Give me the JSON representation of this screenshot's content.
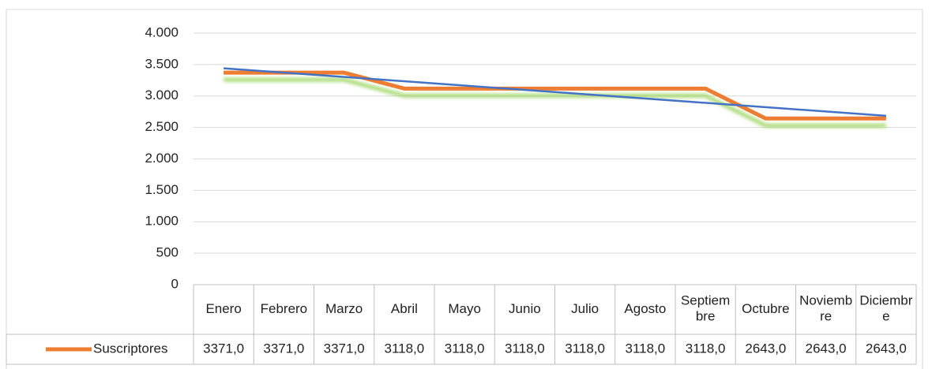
{
  "chart_data": {
    "type": "line",
    "categories": [
      "Enero",
      "Febrero",
      "Marzo",
      "Abril",
      "Mayo",
      "Junio",
      "Julio",
      "Agosto",
      "Septiembre",
      "Octubre",
      "Noviembre",
      "Diciembre"
    ],
    "series": [
      {
        "name": "Suscriptores",
        "color": "#ed7d31",
        "values": [
          3371,
          3371,
          3371,
          3118,
          3118,
          3118,
          3118,
          3118,
          3118,
          2643,
          2643,
          2643
        ],
        "value_labels": [
          "3371,0",
          "3371,0",
          "3371,0",
          "3118,0",
          "3118,0",
          "3118,0",
          "3118,0",
          "3118,0",
          "3118,0",
          "2643,0",
          "2643,0",
          "2643,0"
        ]
      }
    ],
    "trendline": true,
    "trendline_color": "#4472c4",
    "ylim": [
      0,
      4000
    ],
    "yticks": [
      0,
      500,
      {
        "value": 1000,
        "label": "1.000"
      },
      {
        "value": 1500,
        "label": "1.500"
      },
      {
        "value": 2000,
        "label": "2.000"
      },
      {
        "value": 2500,
        "label": "2.500"
      },
      {
        "value": 3000,
        "label": "3.000"
      },
      {
        "value": 3500,
        "label": "3.500"
      },
      {
        "value": 4000,
        "label": "4.000"
      }
    ],
    "grid": true
  }
}
